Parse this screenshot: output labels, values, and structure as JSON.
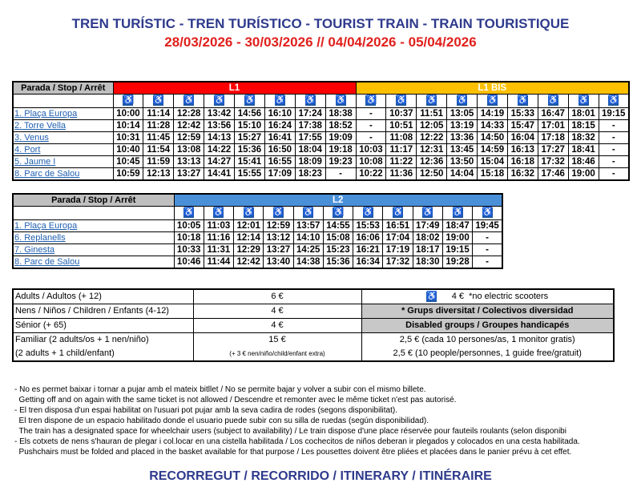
{
  "header": {
    "title": "TREN TURÍSTIC - TREN TURÍSTICO - TOURIST TRAIN - TRAIN TOURISTIQUE",
    "dates": "28/03/2026 - 30/03/2026 // 04/04/2026 - 05/04/2026"
  },
  "colors": {
    "l1": "#ff0000",
    "l1bis": "#ffc000",
    "l2": "#4a90d9",
    "wheelchair": "#1f5aa6"
  },
  "icon": "wheelchair-icon",
  "l1_table": {
    "stop_header": "Parada / Stop / Arrêt",
    "lines": [
      {
        "label": "L1",
        "cols": 8,
        "color": "#ff0000"
      },
      {
        "label": "L1 BIS",
        "cols": 9,
        "color": "#ffc000"
      }
    ],
    "rows": [
      {
        "stop": "1. Plaça Europa",
        "times": [
          "10:00",
          "11:14",
          "12:28",
          "13:42",
          "14:56",
          "16:10",
          "17:24",
          "18:38",
          "-",
          "10:37",
          "11:51",
          "13:05",
          "14:19",
          "15:33",
          "16:47",
          "18:01",
          "19:15"
        ]
      },
      {
        "stop": "2. Torre Vella",
        "times": [
          "10:14",
          "11:28",
          "12:42",
          "13:56",
          "15:10",
          "16:24",
          "17:38",
          "18:52",
          "-",
          "10:51",
          "12:05",
          "13:19",
          "14:33",
          "15:47",
          "17:01",
          "18:15",
          "-"
        ]
      },
      {
        "stop": "3. Venus",
        "times": [
          "10:31",
          "11:45",
          "12:59",
          "14:13",
          "15:27",
          "16:41",
          "17:55",
          "19:09",
          "-",
          "11:08",
          "12:22",
          "13:36",
          "14:50",
          "16:04",
          "17:18",
          "18:32",
          "-"
        ]
      },
      {
        "stop": "4. Port",
        "times": [
          "10:40",
          "11:54",
          "13:08",
          "14:22",
          "15:36",
          "16:50",
          "18:04",
          "19:18",
          "10:03",
          "11:17",
          "12:31",
          "13:45",
          "14:59",
          "16:13",
          "17:27",
          "18:41",
          "-"
        ]
      },
      {
        "stop": "5. Jaume I",
        "times": [
          "10:45",
          "11:59",
          "13:13",
          "14:27",
          "15:41",
          "16:55",
          "18:09",
          "19:23",
          "10:08",
          "11:22",
          "12:36",
          "13:50",
          "15:04",
          "16:18",
          "17:32",
          "18:46",
          "-"
        ]
      },
      {
        "stop": "8. Parc de Salou",
        "times": [
          "10:59",
          "12:13",
          "13:27",
          "14:41",
          "15:55",
          "17:09",
          "18:23",
          "-",
          "10:22",
          "11:36",
          "12:50",
          "14:04",
          "15:18",
          "16:32",
          "17:46",
          "19:00",
          "-"
        ]
      }
    ]
  },
  "l2_table": {
    "stop_header": "Parada / Stop / Arrêt",
    "lines": [
      {
        "label": "L2",
        "cols": 11,
        "color": "#4a90d9"
      }
    ],
    "rows": [
      {
        "stop": "1. Plaça Europa",
        "times": [
          "10:05",
          "11:03",
          "12:01",
          "12:59",
          "13:57",
          "14:55",
          "15:53",
          "16:51",
          "17:49",
          "18:47",
          "19:45"
        ]
      },
      {
        "stop": "6. Replanells",
        "times": [
          "10:18",
          "11:16",
          "12:14",
          "13:12",
          "14:10",
          "15:08",
          "16:06",
          "17:04",
          "18:02",
          "19:00",
          "-"
        ]
      },
      {
        "stop": "7. Ginesta",
        "times": [
          "10:33",
          "11:31",
          "12:29",
          "13:27",
          "14:25",
          "15:23",
          "16:21",
          "17:19",
          "18:17",
          "19:15",
          "-"
        ]
      },
      {
        "stop": "8. Parc de Salou",
        "times": [
          "10:46",
          "11:44",
          "12:42",
          "13:40",
          "14:38",
          "15:36",
          "16:34",
          "17:32",
          "18:30",
          "19:28",
          "-"
        ]
      }
    ]
  },
  "prices": {
    "adults": {
      "label": "Adults / Adultos (+ 12)",
      "price": "6 €",
      "reduced": "4 €",
      "reduced_note": "*no electric scooters"
    },
    "children": {
      "label": "Nens / Niños / Children / Enfants (4-12)",
      "price": "4 €"
    },
    "senior": {
      "label": "Sénior (+ 65)",
      "price": "4 €"
    },
    "groups_line1": "* Grups diversitat  / Colectivos  diversidad",
    "groups_line2": "Disabled groups / Groupes handicapés",
    "family": {
      "label1": "Familiar (2 adults/os + 1 nen/niño)",
      "label2": "(2 adults + 1  child/enfant)",
      "price": "15 €",
      "extra": "(+ 3 € nen/niño/child/enfant extra)"
    },
    "group_price1": "2,5 €  (cada 10 persones/as, 1 monitor gratis)",
    "group_price2": "2,5 €  (10 people/personnes, 1 guide free/gratuit)"
  },
  "notes": [
    "- No es permet baixar i tornar a pujar amb el mateix bitllet / No se permite bajar y volver a subir con el mismo billete.",
    "  Getting off and on again with the same ticket is not allowed / Descendre et remonter avec le même ticket n'est pas autorisé.",
    "- El tren disposa d'un espai habilitat on l'usuari pot pujar amb la seva cadira de rodes (segons disponibilitat).",
    "  El tren dispone de un espacio habilitado donde el usuario puede subir con su silla de ruedas (según disponibilidad).",
    "  The train has a designated space for wheelchair users (subject to availability) / Le train dispose d'une place réservée pour fauteils roulants (selon disponibi",
    "- Els cotxets de nens s'hauran de plegar i col.locar en una cistella habilitada /  Los cochecitos de niños deberan ir plegados y colocados en una cesta habilitada.",
    "  Pushchairs must be folded and placed in the basket available for that purpose / Les pousettes doivent être pliées et placées dans le panier prévu à cet effet."
  ],
  "footer": "RECORREGUT / RECORRIDO / ITINERARY / ITINÉRAIRE"
}
